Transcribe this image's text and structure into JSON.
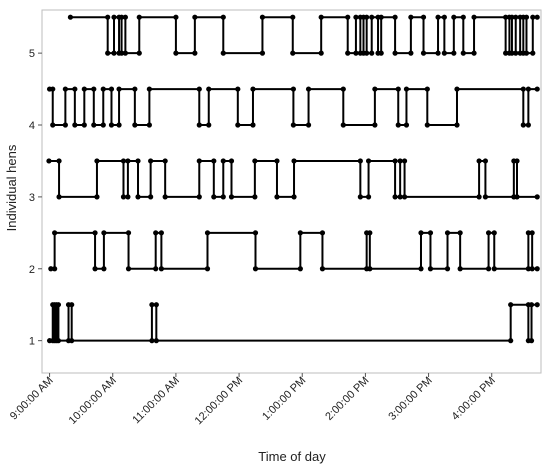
{
  "chart_data": {
    "type": "line",
    "xlabel": "Time of day",
    "ylabel": "Individual hens",
    "xlim": [
      8.88,
      16.78
    ],
    "ylim": [
      0.55,
      5.6
    ],
    "x_ticks": [
      {
        "value": 9,
        "label": "9:00:00 AM"
      },
      {
        "value": 10,
        "label": "10:00:00 AM"
      },
      {
        "value": 11,
        "label": "11:00:00 AM"
      },
      {
        "value": 12,
        "label": "12:00:00 PM"
      },
      {
        "value": 13,
        "label": "1:00:00 PM"
      },
      {
        "value": 14,
        "label": "2:00:00 PM"
      },
      {
        "value": 15,
        "label": "3:00:00 PM"
      },
      {
        "value": 16,
        "label": "4:00:00 PM"
      }
    ],
    "y_ticks": [
      1,
      2,
      3,
      4,
      5
    ],
    "grid": false,
    "series": [
      {
        "hen": 1,
        "x": [
          9.0,
          9.05,
          9.08,
          9.11,
          9.14,
          9.3,
          9.35,
          10.62,
          10.69,
          16.3,
          16.58,
          16.63
        ],
        "state": [
          0,
          1,
          0,
          1,
          0,
          1,
          0,
          1,
          0,
          1,
          0,
          1
        ]
      },
      {
        "hen": 2,
        "x": [
          9.02,
          9.08,
          9.72,
          9.86,
          10.25,
          10.68,
          10.77,
          11.5,
          12.26,
          12.97,
          13.32,
          14.02,
          14.07,
          14.88,
          15.03,
          15.3,
          15.5,
          15.95,
          16.04,
          16.58,
          16.64
        ],
        "state": [
          0,
          1,
          0,
          1,
          0,
          1,
          0,
          1,
          0,
          1,
          0,
          1,
          0,
          1,
          0,
          1,
          0,
          1,
          0,
          1,
          0
        ]
      },
      {
        "hen": 3,
        "x": [
          8.99,
          9.15,
          9.75,
          10.17,
          10.24,
          10.4,
          10.6,
          10.83,
          11.37,
          11.6,
          11.75,
          11.88,
          12.25,
          12.6,
          12.87,
          13.92,
          14.05,
          14.47,
          14.55,
          14.62,
          15.8,
          15.9,
          16.35,
          16.4
        ],
        "state": [
          1,
          0,
          1,
          0,
          1,
          0,
          1,
          0,
          1,
          0,
          1,
          0,
          1,
          0,
          1,
          0,
          1,
          0,
          1,
          0,
          1,
          0,
          1,
          0
        ]
      },
      {
        "hen": 4,
        "x": [
          9.0,
          9.05,
          9.25,
          9.4,
          9.55,
          9.7,
          9.85,
          9.98,
          10.1,
          10.35,
          10.58,
          11.37,
          11.52,
          11.98,
          12.22,
          12.86,
          13.1,
          13.65,
          14.15,
          14.52,
          14.65,
          14.98,
          15.45,
          16.5,
          16.58
        ],
        "state": [
          1,
          0,
          1,
          0,
          1,
          0,
          1,
          0,
          1,
          0,
          1,
          0,
          1,
          0,
          1,
          0,
          1,
          0,
          1,
          0,
          1,
          0,
          1,
          0,
          1
        ]
      },
      {
        "hen": 5,
        "x": [
          9.33,
          9.92,
          10.02,
          10.1,
          10.14,
          10.2,
          10.42,
          11.0,
          11.3,
          11.75,
          12.37,
          12.85,
          13.3,
          13.72,
          13.85,
          13.92,
          13.97,
          14.02,
          14.1,
          14.2,
          14.25,
          14.47,
          14.72,
          14.92,
          15.15,
          15.25,
          15.4,
          15.55,
          15.72,
          16.22,
          16.28,
          16.32,
          16.38,
          16.45,
          16.5,
          16.55,
          16.65
        ],
        "state": [
          1,
          0,
          1,
          0,
          1,
          0,
          1,
          0,
          1,
          0,
          1,
          0,
          1,
          0,
          1,
          0,
          1,
          0,
          1,
          0,
          1,
          0,
          1,
          0,
          1,
          0,
          1,
          0,
          1,
          0,
          1,
          0,
          1,
          0,
          1,
          0,
          1
        ]
      }
    ]
  }
}
